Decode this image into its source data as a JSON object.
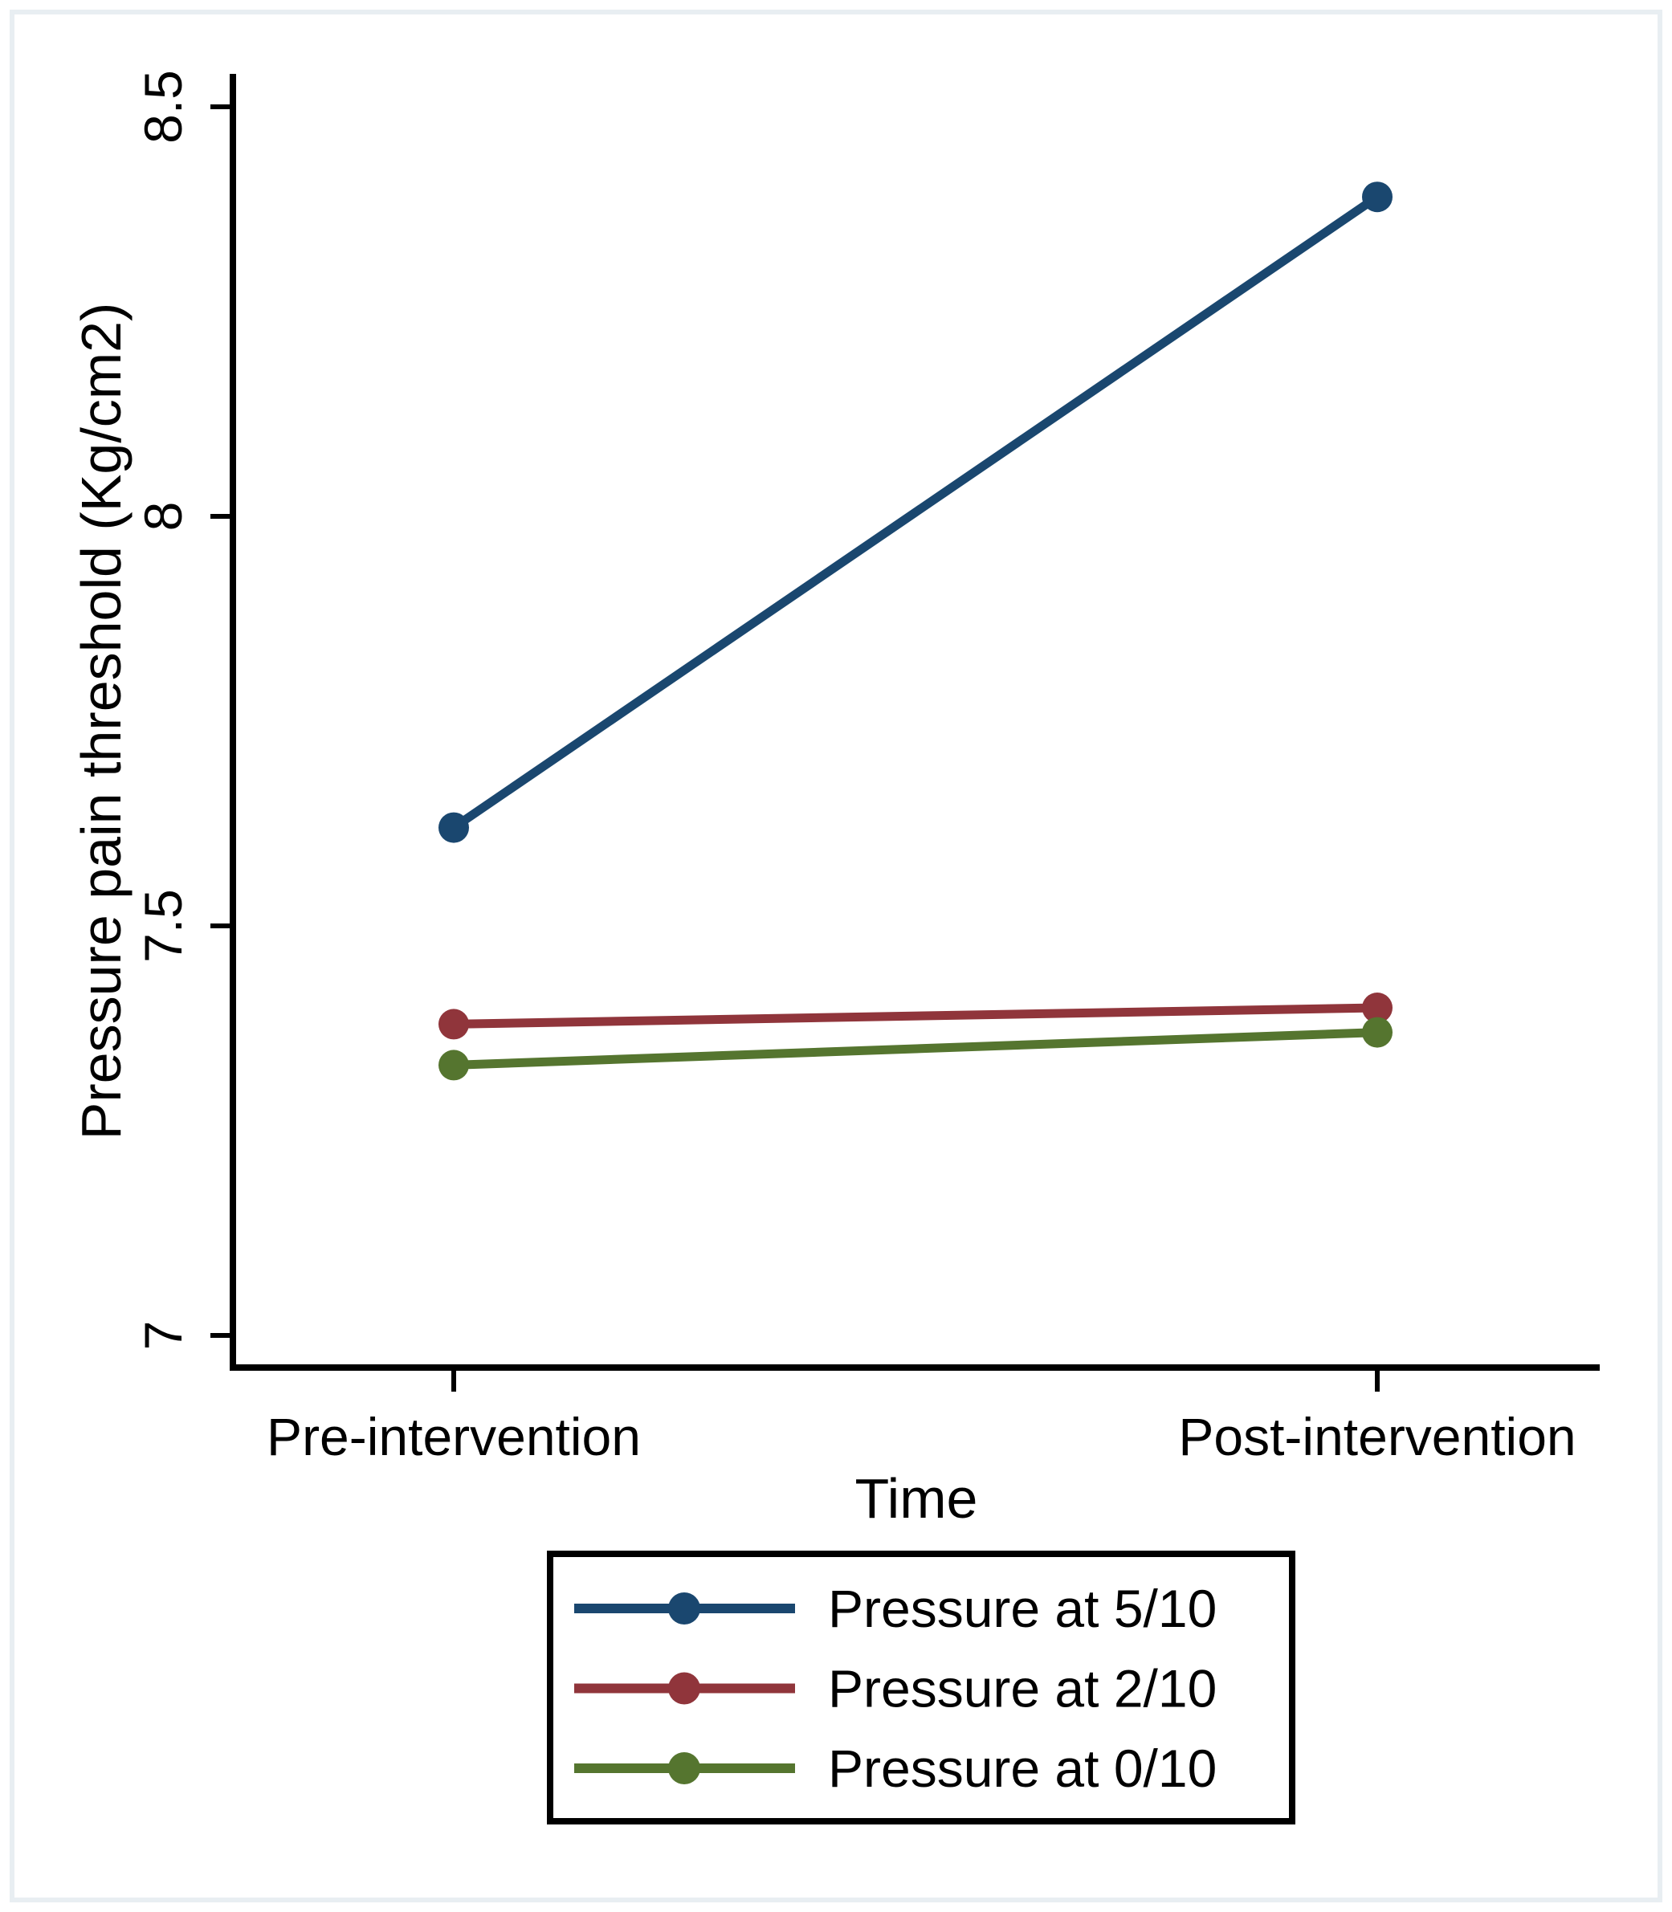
{
  "figure": {
    "background": "#ffffff",
    "border_color": "#e8eef2",
    "text_color": "#000000",
    "axis_color": "#000000"
  },
  "chart_data": {
    "type": "line",
    "title": "",
    "categories": [
      "Pre-intervention",
      "Post-intervention"
    ],
    "series": [
      {
        "name": "Pressure at 5/10",
        "values": [
          7.62,
          8.39
        ],
        "color": "#1A476F"
      },
      {
        "name": "Pressure at 2/10",
        "values": [
          7.38,
          7.4
        ],
        "color": "#90353B"
      },
      {
        "name": "Pressure at 0/10",
        "values": [
          7.33,
          7.37
        ],
        "color": "#55752F"
      }
    ],
    "xlabel": "Time",
    "ylabel": "Pressure pain threshold (Kg/cm2)",
    "yticks": [
      8.5,
      8,
      7.5,
      7
    ],
    "ytick_labels": [
      "8.5",
      "8",
      "7.5",
      "7"
    ],
    "ylim": [
      6.96,
      8.54
    ],
    "grid": false,
    "marker": "circle",
    "legend_position": "bottom-center"
  }
}
